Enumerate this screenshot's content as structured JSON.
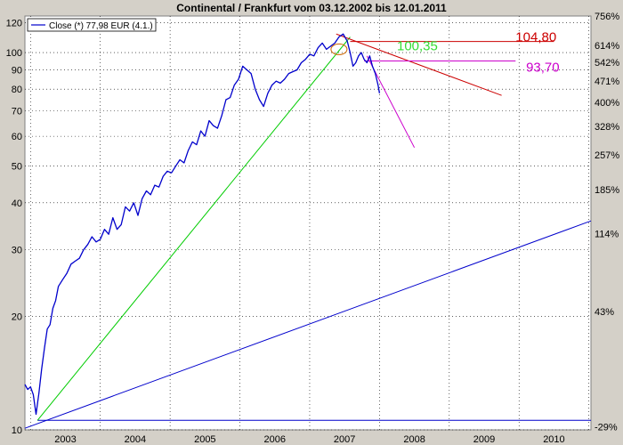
{
  "chart_data": {
    "type": "line",
    "title": "Continental / Frankfurt vom 03.12.2002 bis 12.01.2011",
    "legend": {
      "label": "Close (*) 77,98 EUR (4.1.)",
      "placement": "top-left",
      "color": "#0000cc"
    },
    "y_scale": "log",
    "ylim": [
      10,
      125
    ],
    "xlim": [
      2002.92,
      2011.03
    ],
    "y_ticks_left": [
      10,
      20,
      30,
      40,
      50,
      60,
      70,
      80,
      90,
      100,
      120
    ],
    "y_ticks_right": [
      {
        "label": "756%",
        "value": 125
      },
      {
        "label": "614%",
        "value": 104.5
      },
      {
        "label": "542%",
        "value": 94.3
      },
      {
        "label": "471%",
        "value": 84.1
      },
      {
        "label": "400%",
        "value": 73.9
      },
      {
        "label": "328%",
        "value": 63.7
      },
      {
        "label": "257%",
        "value": 53.5
      },
      {
        "label": "185%",
        "value": 43.3
      },
      {
        "label": "114%",
        "value": 33.1
      },
      {
        "label": "43%",
        "value": 20.6
      },
      {
        "label": "-29%",
        "value": 10.2
      }
    ],
    "x_ticks": [
      "2003",
      "2004",
      "2005",
      "2006",
      "2007",
      "2008",
      "2009",
      "2010"
    ],
    "x_tick_values": [
      2003,
      2004,
      2005,
      2006,
      2007,
      2008,
      2009,
      2010
    ],
    "grid": true,
    "series": [
      {
        "name": "Close (*) 77,98 EUR (4.1.)",
        "color": "#0000cc",
        "x": [
          2002.92,
          2002.96,
          2003.0,
          2003.04,
          2003.08,
          2003.12,
          2003.16,
          2003.2,
          2003.24,
          2003.28,
          2003.32,
          2003.36,
          2003.4,
          2003.46,
          2003.52,
          2003.58,
          2003.64,
          2003.7,
          2003.76,
          2003.82,
          2003.88,
          2003.94,
          2004.0,
          2004.06,
          2004.12,
          2004.18,
          2004.24,
          2004.3,
          2004.36,
          2004.42,
          2004.48,
          2004.54,
          2004.6,
          2004.66,
          2004.72,
          2004.78,
          2004.84,
          2004.9,
          2004.96,
          2005.02,
          2005.08,
          2005.14,
          2005.2,
          2005.26,
          2005.32,
          2005.38,
          2005.44,
          2005.5,
          2005.56,
          2005.62,
          2005.68,
          2005.74,
          2005.8,
          2005.86,
          2005.92,
          2005.98,
          2006.04,
          2006.1,
          2006.16,
          2006.22,
          2006.28,
          2006.34,
          2006.4,
          2006.46,
          2006.52,
          2006.58,
          2006.64,
          2006.7,
          2006.76,
          2006.82,
          2006.88,
          2006.94,
          2007.0,
          2007.06,
          2007.12,
          2007.18,
          2007.24,
          2007.3,
          2007.36,
          2007.42,
          2007.48,
          2007.54,
          2007.58,
          2007.62,
          2007.66,
          2007.7,
          2007.74,
          2007.78,
          2007.82,
          2007.86,
          2007.9,
          2007.94,
          2007.98,
          2008.0
        ],
        "values": [
          13.2,
          12.8,
          13.0,
          12.4,
          11.0,
          12.5,
          14.5,
          16.5,
          18.5,
          19.0,
          21.0,
          22.0,
          24.0,
          25.0,
          26.0,
          27.5,
          28.0,
          28.5,
          30.0,
          31.0,
          32.5,
          31.5,
          32.0,
          34.0,
          33.0,
          36.5,
          34.0,
          35.0,
          39.0,
          38.0,
          40.0,
          37.0,
          41.0,
          43.0,
          42.0,
          44.5,
          44.0,
          47.0,
          48.5,
          48.0,
          50.0,
          52.0,
          51.0,
          55.0,
          58.0,
          57.0,
          62.0,
          60.0,
          66.0,
          64.0,
          63.0,
          68.0,
          75.0,
          76.0,
          82.0,
          85.0,
          92.0,
          90.0,
          88.0,
          80.0,
          75.0,
          72.0,
          78.0,
          82.0,
          84.0,
          83.0,
          85.0,
          88.0,
          89.0,
          90.0,
          94.0,
          96.0,
          99.0,
          98.0,
          103.0,
          106.0,
          102.0,
          104.0,
          106.0,
          110.0,
          112.0,
          107.0,
          100.0,
          92.0,
          94.0,
          98.0,
          100.0,
          96.0,
          94.0,
          98.0,
          92.0,
          88.0,
          82.0,
          78.0
        ]
      }
    ],
    "trendlines": [
      {
        "name": "lower-support",
        "color": "#0000cc",
        "x": [
          2002.92,
          2011.03
        ],
        "values": [
          10.1,
          35.8
        ]
      },
      {
        "name": "horizontal-support",
        "color": "#0000cc",
        "x": [
          2003.1,
          2011.03
        ],
        "values": [
          10.6,
          10.6
        ]
      },
      {
        "name": "green-uptrend",
        "color": "#00cc00",
        "x": [
          2003.1,
          2007.58
        ],
        "values": [
          10.6,
          110.0
        ]
      },
      {
        "name": "red-horizontal",
        "color": "#cc0000",
        "x": [
          2007.58,
          2010.5
        ],
        "values": [
          107.0,
          107.0
        ]
      },
      {
        "name": "red-downtrend",
        "color": "#cc0000",
        "x": [
          2007.38,
          2009.75
        ],
        "values": [
          112.0,
          77.0
        ]
      },
      {
        "name": "magenta-horizontal",
        "color": "#cc00cc",
        "x": [
          2007.78,
          2009.95
        ],
        "values": [
          95.0,
          95.0
        ]
      },
      {
        "name": "magenta-downtrend",
        "color": "#cc00cc",
        "x": [
          2007.82,
          2008.5
        ],
        "values": [
          98.0,
          56.0
        ]
      }
    ],
    "annotations": [
      {
        "text": "104,80",
        "color": "#cc0000",
        "x": 2009.95,
        "y": 107.0
      },
      {
        "text": "100,35",
        "color": "#33dd33",
        "x": 2008.25,
        "y": 101.5
      },
      {
        "text": "93,70",
        "color": "#cc00cc",
        "x": 2010.1,
        "y": 89.0
      }
    ]
  }
}
